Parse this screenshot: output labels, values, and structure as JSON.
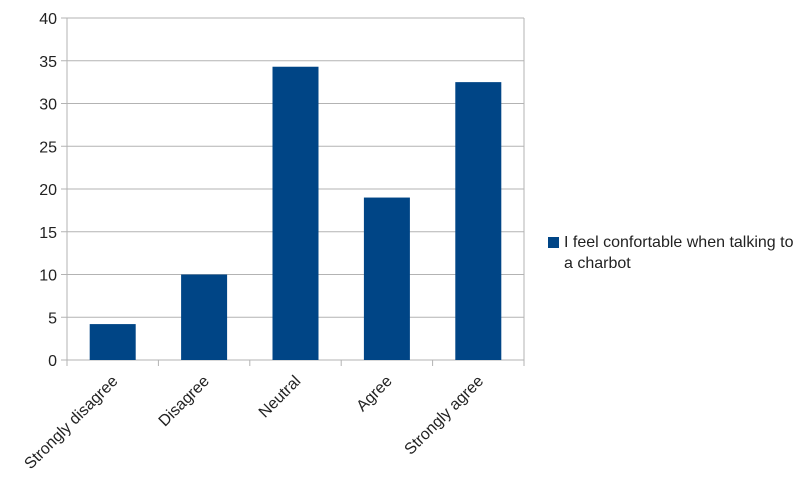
{
  "chart_data": {
    "type": "bar",
    "categories": [
      "Strongly disagree",
      "Disagree",
      "Neutral",
      "Agree",
      "Strongly agree"
    ],
    "series": [
      {
        "name": "I feel confortable when talking to a charbot",
        "values": [
          4.2,
          10,
          34.3,
          19,
          32.5
        ],
        "color": "#004586"
      }
    ],
    "ylim": [
      0,
      40
    ],
    "yticks": [
      "0",
      "5",
      "10",
      "15",
      "20",
      "25",
      "30",
      "35",
      "40"
    ],
    "grid": true,
    "legend_position": "right",
    "gridline_color": "#b3b3b3"
  }
}
